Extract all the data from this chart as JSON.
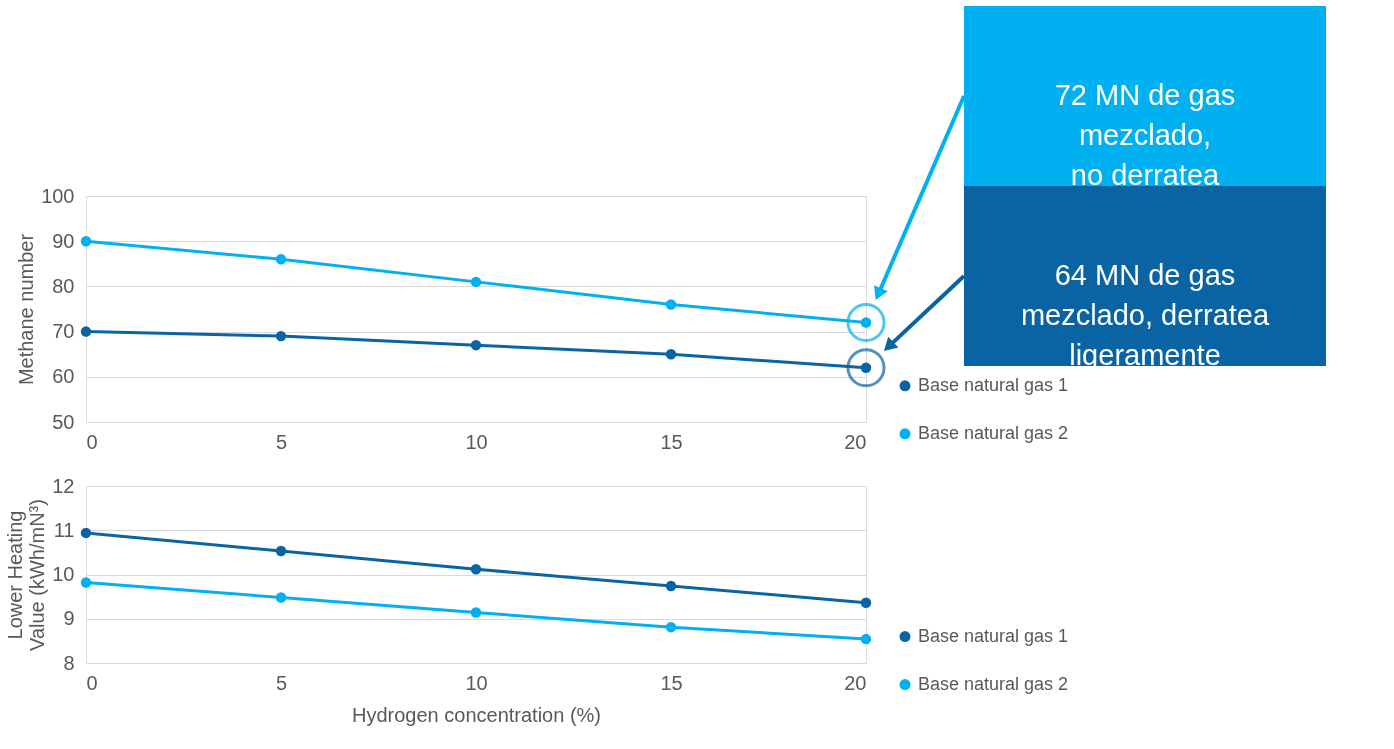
{
  "chart_data": [
    {
      "type": "line",
      "ylabel": "Methane number",
      "xlim": [
        0,
        20
      ],
      "xticks": [
        0,
        5,
        10,
        15,
        20
      ],
      "ylim": [
        50,
        100
      ],
      "yticks": [
        50,
        60,
        70,
        80,
        90,
        100
      ],
      "grid": "y",
      "legend": "right",
      "marker": "circle",
      "line_style": "solid",
      "x": [
        0,
        5,
        10,
        15,
        20
      ],
      "series": [
        {
          "name": "Base natural gas 1",
          "color": "#0a64a4",
          "values": [
            70,
            69,
            67,
            65,
            62
          ]
        },
        {
          "name": "Base natural gas 2",
          "color": "#00b0f0",
          "values": [
            90,
            86,
            81,
            76,
            72
          ]
        }
      ],
      "annotations": [
        "72 MN de gas\nmezclado,\nno derratea",
        "64 MN de gas\nmezclado, derratea\nligeramente"
      ]
    },
    {
      "type": "line",
      "ylabel": "Lower Heating Value (kWh/mN³)",
      "xlabel": "Hydrogen concentration (%)",
      "xlim": [
        0,
        20
      ],
      "xticks": [
        0,
        5,
        10,
        15,
        20
      ],
      "ylim": [
        8,
        12
      ],
      "yticks": [
        8,
        9,
        10,
        11,
        12
      ],
      "grid": "y",
      "legend": "right",
      "marker": "circle",
      "line_style": "solid",
      "x": [
        0,
        5,
        10,
        15,
        20
      ],
      "series": [
        {
          "name": "Base natural gas 1",
          "color": "#0a64a4",
          "values": [
            10.94,
            10.53,
            10.12,
            9.74,
            9.36
          ]
        },
        {
          "name": "Base natural gas 2",
          "color": "#00b0f0",
          "values": [
            9.82,
            9.48,
            9.14,
            8.81,
            8.54
          ]
        }
      ]
    }
  ]
}
